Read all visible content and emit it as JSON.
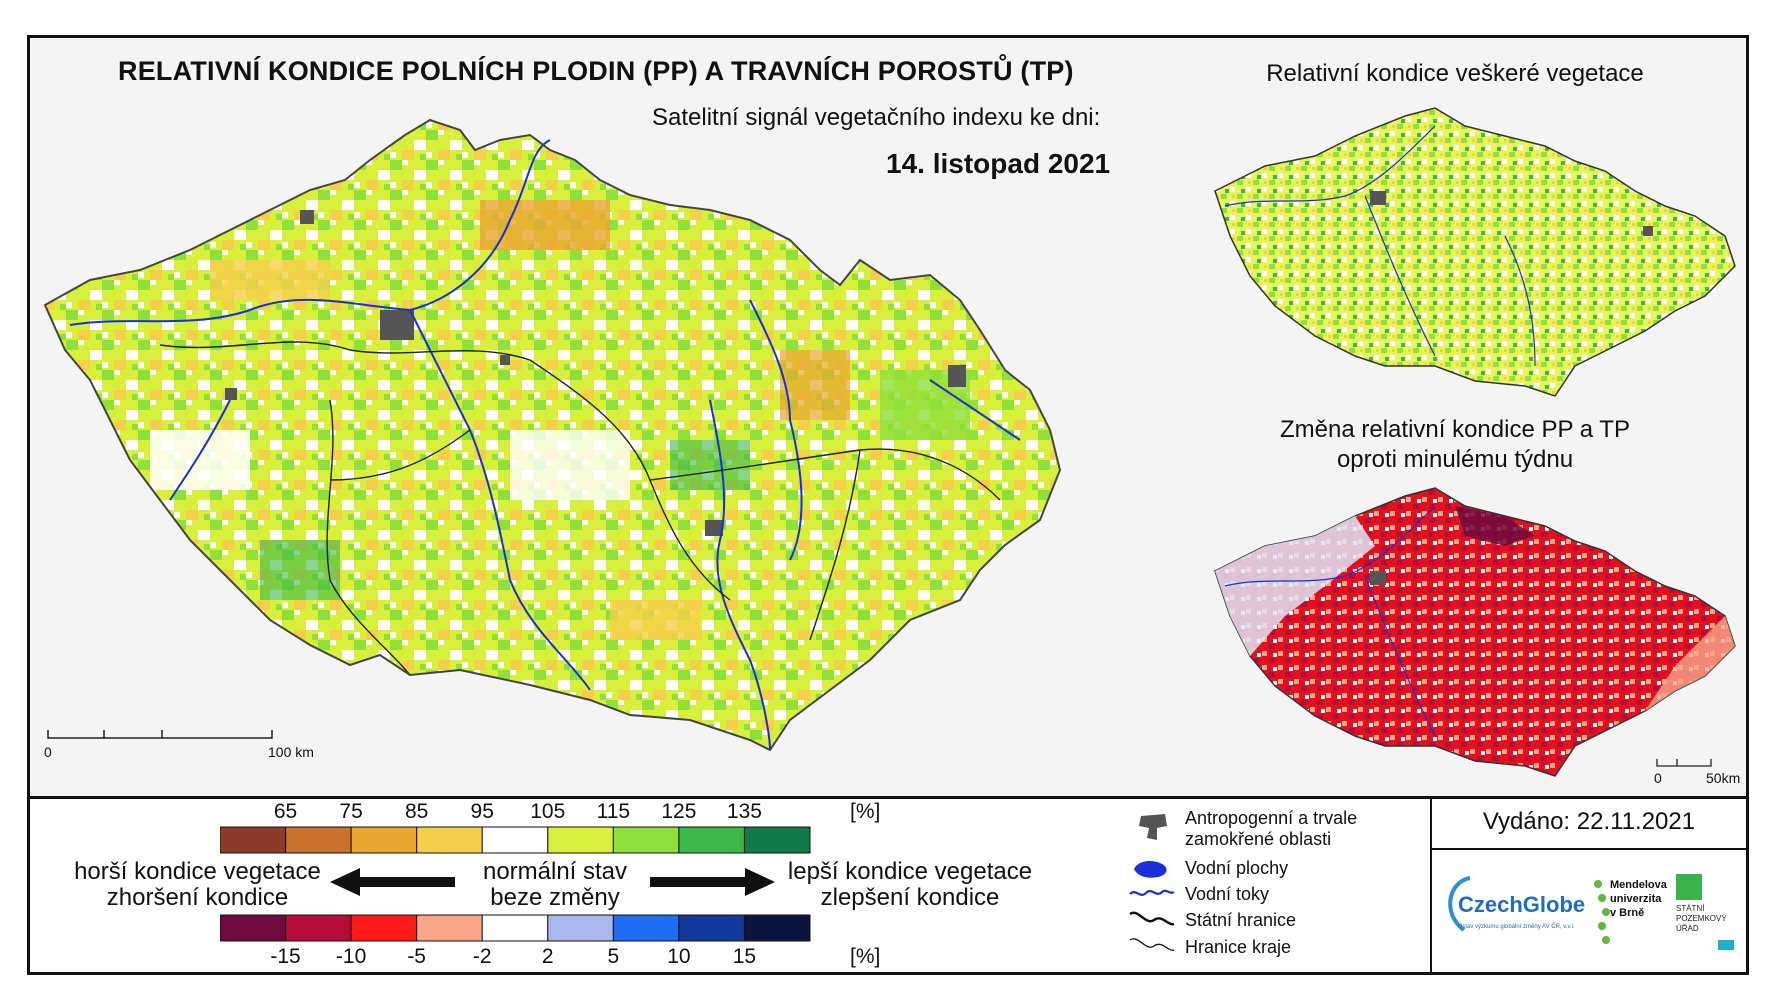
{
  "header": {
    "title": "RELATIVNÍ KONDICE POLNÍCH PLODIN (PP) A TRAVNÍCH POROSTŮ (TP)",
    "subtitle": "Satelitní signál vegetačního indexu ke dni:",
    "date": "14. listopad 2021"
  },
  "top_right_map": {
    "title": "Relativní kondice veškeré vegetace"
  },
  "bottom_right_map": {
    "title_line1": "Změna relativní kondice PP a TP",
    "title_line2": "oproti minulému týdnu"
  },
  "main_scale": {
    "start": "0",
    "end": "100 km"
  },
  "small_scale": {
    "start": "0",
    "end": "50km"
  },
  "condition_legend": {
    "ticks": [
      "65",
      "75",
      "85",
      "95",
      "105",
      "115",
      "125",
      "135"
    ],
    "unit": "[%]",
    "colors": [
      "#8c3b2b",
      "#c8702c",
      "#e8a52f",
      "#f6cf4a",
      "#ffffff",
      "#d8ef3c",
      "#8fe03a",
      "#3cb84a",
      "#127a48"
    ]
  },
  "change_legend": {
    "ticks": [
      "-15",
      "-10",
      "-5",
      "-2",
      "2",
      "5",
      "10",
      "15"
    ],
    "unit": "[%]",
    "colors": [
      "#6e0a3e",
      "#b50c3c",
      "#ff1a1a",
      "#f9a58a",
      "#ffffff",
      "#a8b8ec",
      "#1e6cf0",
      "#123a9c",
      "#0c1440"
    ]
  },
  "arrows": {
    "left_line1": "horší kondice vegetace",
    "left_line2": "zhoršení kondice",
    "center_line1": "normální stav",
    "center_line2": "beze změny",
    "right_line1": "lepší kondice vegetace",
    "right_line2": "zlepšení kondice"
  },
  "map_legend": {
    "items": [
      {
        "label_line1": "Antropogenní a trvale",
        "label_line2": "zamokřené oblasti",
        "icon": "urban-area-icon"
      },
      {
        "label_line1": "Vodní plochy",
        "icon": "water-body-icon"
      },
      {
        "label_line1": "Vodní toky",
        "icon": "river-icon"
      },
      {
        "label_line1": "Státní hranice",
        "icon": "state-border-icon"
      },
      {
        "label_line1": "Hranice kraje",
        "icon": "region-border-icon"
      }
    ]
  },
  "issued": {
    "text": "Vydáno: 22.11.2021"
  },
  "logos": {
    "czechglobe": "CzechGlobe",
    "czechglobe_sub": "Ústav výzkumu globální změny AV ČR, v.v.i.",
    "mendel_line1": "Mendelova",
    "mendel_line2": "univerzita",
    "mendel_line3": "v Brně",
    "spu_line1": "STÁTNÍ",
    "spu_line2": "POZEMKOVÝ",
    "spu_line3": "ÚŘAD"
  }
}
